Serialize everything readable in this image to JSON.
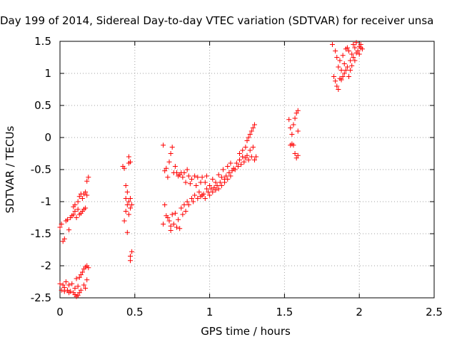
{
  "chart_data": {
    "type": "scatter",
    "title": "Day 199 of 2014, Sidereal Day-to-day VTEC variation (SDTVAR) for receiver unsa",
    "xlabel": "GPS time / hours",
    "ylabel": "SDTVAR / TECUs",
    "xlim": [
      0,
      2.5
    ],
    "ylim": [
      -2.5,
      1.5
    ],
    "x_ticks": [
      0,
      0.5,
      1,
      1.5,
      2,
      2.5
    ],
    "x_tick_labels": [
      "0",
      "0.5",
      "1",
      "1.5",
      "2",
      "2.5"
    ],
    "y_ticks": [
      -2.5,
      -2,
      -1.5,
      -1,
      -0.5,
      0,
      0.5,
      1,
      1.5
    ],
    "y_tick_labels": [
      "-2.5",
      "-2",
      "-1.5",
      "-1",
      "-0.5",
      "0",
      "0.5",
      "1",
      "1.5"
    ],
    "grid": true,
    "marker": "plus",
    "series": [
      {
        "color": "#ff0000",
        "points": [
          [
            0.0,
            -1.4
          ],
          [
            0.01,
            -1.35
          ],
          [
            0.02,
            -1.62
          ],
          [
            0.03,
            -1.58
          ],
          [
            0.04,
            -1.3
          ],
          [
            0.05,
            -1.28
          ],
          [
            0.06,
            -1.44
          ],
          [
            0.07,
            -1.25
          ],
          [
            0.08,
            -1.22
          ],
          [
            0.09,
            -1.2
          ],
          [
            0.09,
            -1.08
          ],
          [
            0.1,
            -1.15
          ],
          [
            0.1,
            -1.05
          ],
          [
            0.11,
            -1.25
          ],
          [
            0.12,
            -1.0
          ],
          [
            0.12,
            -1.12
          ],
          [
            0.13,
            -0.92
          ],
          [
            0.13,
            -1.2
          ],
          [
            0.14,
            -0.88
          ],
          [
            0.14,
            -1.18
          ],
          [
            0.15,
            -0.95
          ],
          [
            0.15,
            -1.15
          ],
          [
            0.16,
            -0.88
          ],
          [
            0.16,
            -1.12
          ],
          [
            0.17,
            -0.85
          ],
          [
            0.17,
            -1.1
          ],
          [
            0.18,
            -0.9
          ],
          [
            0.18,
            -0.68
          ],
          [
            0.19,
            -0.62
          ],
          [
            0.0,
            -2.28
          ],
          [
            0.01,
            -2.38
          ],
          [
            0.02,
            -2.3
          ],
          [
            0.03,
            -2.4
          ],
          [
            0.03,
            -2.34
          ],
          [
            0.04,
            -2.25
          ],
          [
            0.05,
            -2.38
          ],
          [
            0.06,
            -2.3
          ],
          [
            0.06,
            -2.42
          ],
          [
            0.07,
            -2.4
          ],
          [
            0.08,
            -2.28
          ],
          [
            0.09,
            -2.42
          ],
          [
            0.1,
            -2.45
          ],
          [
            0.1,
            -2.35
          ],
          [
            0.11,
            -2.2
          ],
          [
            0.11,
            -2.48
          ],
          [
            0.12,
            -2.32
          ],
          [
            0.12,
            -2.46
          ],
          [
            0.13,
            -2.18
          ],
          [
            0.13,
            -2.42
          ],
          [
            0.14,
            -2.14
          ],
          [
            0.14,
            -2.38
          ],
          [
            0.15,
            -2.1
          ],
          [
            0.16,
            -2.05
          ],
          [
            0.16,
            -2.3
          ],
          [
            0.17,
            -2.02
          ],
          [
            0.17,
            -2.35
          ],
          [
            0.18,
            -2.0
          ],
          [
            0.18,
            -2.22
          ],
          [
            0.19,
            -2.03
          ],
          [
            0.42,
            -0.45
          ],
          [
            0.43,
            -0.48
          ],
          [
            0.43,
            -1.3
          ],
          [
            0.44,
            -0.95
          ],
          [
            0.44,
            -1.15
          ],
          [
            0.44,
            -0.75
          ],
          [
            0.45,
            -1.05
          ],
          [
            0.45,
            -1.48
          ],
          [
            0.45,
            -0.85
          ],
          [
            0.46,
            -1.2
          ],
          [
            0.46,
            -0.3
          ],
          [
            0.46,
            -1.0
          ],
          [
            0.46,
            -0.4
          ],
          [
            0.47,
            -1.1
          ],
          [
            0.47,
            -1.92
          ],
          [
            0.47,
            -1.85
          ],
          [
            0.47,
            -0.38
          ],
          [
            0.48,
            -1.78
          ],
          [
            0.48,
            -1.05
          ],
          [
            0.47,
            -0.95
          ],
          [
            0.69,
            -0.12
          ],
          [
            0.69,
            -1.35
          ],
          [
            0.7,
            -0.52
          ],
          [
            0.7,
            -1.05
          ],
          [
            0.71,
            -0.48
          ],
          [
            0.71,
            -1.22
          ],
          [
            0.72,
            -0.62
          ],
          [
            0.72,
            -1.25
          ],
          [
            0.73,
            -0.38
          ],
          [
            0.73,
            -1.3
          ],
          [
            0.74,
            -0.25
          ],
          [
            0.74,
            -1.38
          ],
          [
            0.74,
            -1.45
          ],
          [
            0.75,
            -0.15
          ],
          [
            0.75,
            -1.2
          ],
          [
            0.76,
            -0.55
          ],
          [
            0.76,
            -1.35
          ],
          [
            0.77,
            -0.45
          ],
          [
            0.77,
            -1.18
          ],
          [
            0.78,
            -0.55
          ],
          [
            0.78,
            -1.4
          ],
          [
            0.79,
            -0.6
          ],
          [
            0.79,
            -1.28
          ],
          [
            0.8,
            -0.58
          ],
          [
            0.8,
            -1.42
          ],
          [
            0.81,
            -0.55
          ],
          [
            0.81,
            -1.1
          ],
          [
            0.82,
            -0.62
          ],
          [
            0.82,
            -1.2
          ],
          [
            0.83,
            -0.55
          ],
          [
            0.83,
            -1.05
          ],
          [
            0.84,
            -0.7
          ],
          [
            0.84,
            -1.15
          ],
          [
            0.85,
            -0.5
          ],
          [
            0.85,
            -1.0
          ],
          [
            0.86,
            -0.6
          ],
          [
            0.86,
            -1.05
          ],
          [
            0.87,
            -0.72
          ],
          [
            0.88,
            -0.95
          ],
          [
            0.88,
            -0.65
          ],
          [
            0.89,
            -1.0
          ],
          [
            0.9,
            -0.6
          ],
          [
            0.9,
            -0.9
          ],
          [
            0.91,
            -0.75
          ],
          [
            0.92,
            -0.95
          ],
          [
            0.92,
            -0.62
          ],
          [
            0.93,
            -0.85
          ],
          [
            0.94,
            -0.92
          ],
          [
            0.94,
            -0.7
          ],
          [
            0.95,
            -0.9
          ],
          [
            0.95,
            -0.62
          ],
          [
            0.96,
            -0.88
          ],
          [
            0.97,
            -0.7
          ],
          [
            0.97,
            -0.95
          ],
          [
            0.98,
            -0.8
          ],
          [
            0.98,
            -0.6
          ],
          [
            0.99,
            -0.85
          ],
          [
            1.0,
            -0.75
          ],
          [
            1.0,
            -0.9
          ],
          [
            1.01,
            -0.8
          ],
          [
            1.02,
            -0.65
          ],
          [
            1.02,
            -0.85
          ],
          [
            1.03,
            -0.78
          ],
          [
            1.04,
            -0.82
          ],
          [
            1.04,
            -0.7
          ],
          [
            1.05,
            -0.75
          ],
          [
            1.06,
            -0.58
          ],
          [
            1.06,
            -0.8
          ],
          [
            1.07,
            -0.7
          ],
          [
            1.08,
            -0.62
          ],
          [
            1.08,
            -0.75
          ],
          [
            1.09,
            -0.5
          ],
          [
            1.1,
            -0.65
          ],
          [
            1.1,
            -0.7
          ],
          [
            1.11,
            -0.6
          ],
          [
            1.12,
            -0.45
          ],
          [
            1.12,
            -0.65
          ],
          [
            1.13,
            -0.55
          ],
          [
            1.14,
            -0.4
          ],
          [
            1.14,
            -0.6
          ],
          [
            1.15,
            -0.52
          ],
          [
            1.16,
            -0.48
          ],
          [
            1.17,
            -0.5
          ],
          [
            1.18,
            -0.4
          ],
          [
            1.19,
            -0.45
          ],
          [
            1.2,
            -0.35
          ],
          [
            1.2,
            -0.25
          ],
          [
            1.21,
            -0.42
          ],
          [
            1.22,
            -0.3
          ],
          [
            1.22,
            -0.2
          ],
          [
            1.23,
            -0.38
          ],
          [
            1.24,
            -0.15
          ],
          [
            1.24,
            -0.32
          ],
          [
            1.25,
            -0.28
          ],
          [
            1.25,
            -0.05
          ],
          [
            1.26,
            -0.35
          ],
          [
            1.26,
            0.0
          ],
          [
            1.27,
            -0.2
          ],
          [
            1.27,
            0.05
          ],
          [
            1.28,
            -0.3
          ],
          [
            1.28,
            0.1
          ],
          [
            1.29,
            -0.15
          ],
          [
            1.29,
            0.15
          ],
          [
            1.3,
            -0.35
          ],
          [
            1.3,
            0.2
          ],
          [
            1.31,
            -0.3
          ],
          [
            1.53,
            0.28
          ],
          [
            1.54,
            0.15
          ],
          [
            1.54,
            -0.12
          ],
          [
            1.55,
            0.05
          ],
          [
            1.55,
            -0.1
          ],
          [
            1.56,
            0.2
          ],
          [
            1.56,
            -0.12
          ],
          [
            1.57,
            0.3
          ],
          [
            1.57,
            -0.25
          ],
          [
            1.58,
            0.38
          ],
          [
            1.58,
            -0.32
          ],
          [
            1.59,
            0.42
          ],
          [
            1.59,
            -0.28
          ],
          [
            1.59,
            0.1
          ],
          [
            1.82,
            1.45
          ],
          [
            1.83,
            0.95
          ],
          [
            1.84,
            0.88
          ],
          [
            1.84,
            1.35
          ],
          [
            1.85,
            0.8
          ],
          [
            1.85,
            1.25
          ],
          [
            1.86,
            0.75
          ],
          [
            1.86,
            1.1
          ],
          [
            1.87,
            0.92
          ],
          [
            1.87,
            1.2
          ],
          [
            1.88,
            0.9
          ],
          [
            1.88,
            1.05
          ],
          [
            1.89,
            0.95
          ],
          [
            1.89,
            1.28
          ],
          [
            1.9,
            1.0
          ],
          [
            1.9,
            1.15
          ],
          [
            1.91,
            1.05
          ],
          [
            1.91,
            1.38
          ],
          [
            1.92,
            1.1
          ],
          [
            1.92,
            1.4
          ],
          [
            1.93,
            0.95
          ],
          [
            1.93,
            1.35
          ],
          [
            1.94,
            1.2
          ],
          [
            1.94,
            1.05
          ],
          [
            1.95,
            1.3
          ],
          [
            1.95,
            1.12
          ],
          [
            1.96,
            1.45
          ],
          [
            1.96,
            1.25
          ],
          [
            1.97,
            1.4
          ],
          [
            1.97,
            1.2
          ],
          [
            1.98,
            1.32
          ],
          [
            1.98,
            1.48
          ],
          [
            1.99,
            1.35
          ],
          [
            2.0,
            1.42
          ],
          [
            2.0,
            1.3
          ],
          [
            2.01,
            1.45
          ],
          [
            2.01,
            1.4
          ],
          [
            2.02,
            1.38
          ]
        ]
      }
    ]
  },
  "colors": {
    "marker": "#ff0000",
    "grid": "#a0a0a0",
    "axes": "#000000",
    "background": "#ffffff"
  }
}
